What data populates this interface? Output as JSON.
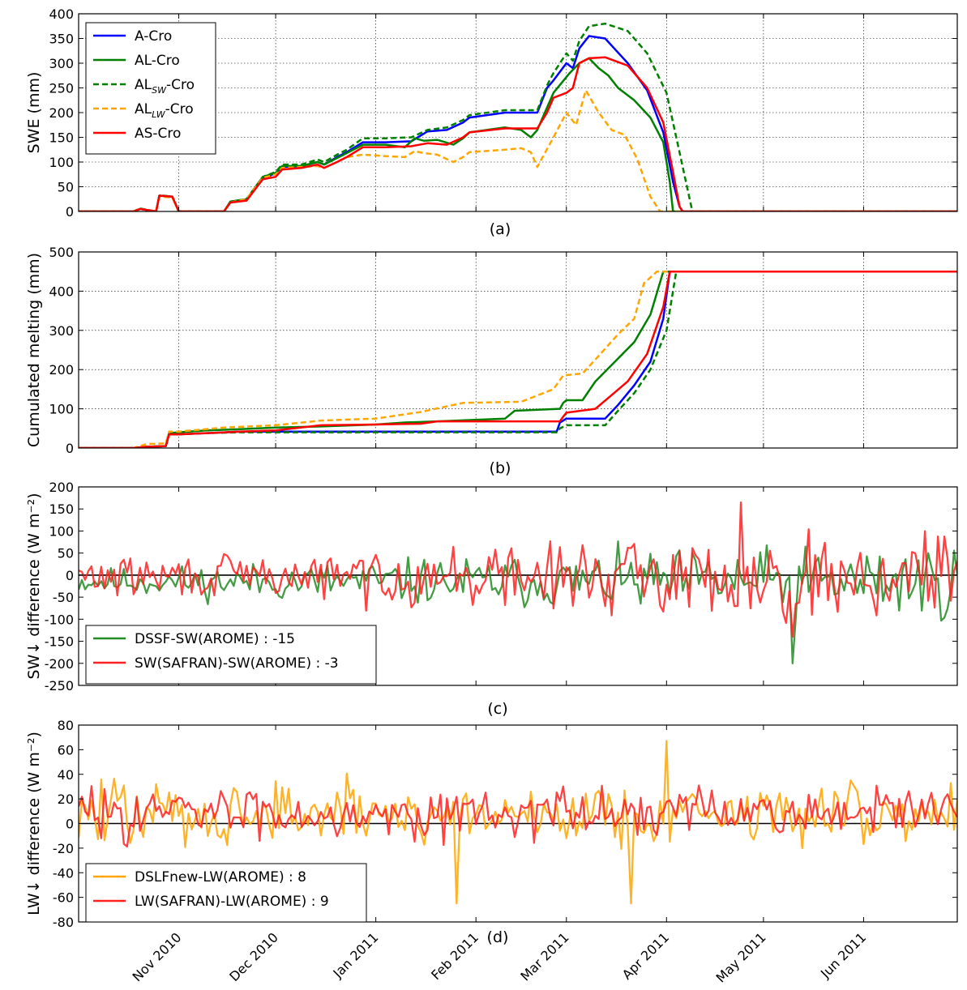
{
  "x_axis": {
    "type": "date",
    "range": [
      "2010-10-01",
      "2011-06-30"
    ],
    "tick_labels": [
      "Nov 2010",
      "Dec 2010",
      "Jan 2011",
      "Feb 2011",
      "Mar 2011",
      "Apr 2011",
      "May 2011",
      "Jun 2011"
    ],
    "tick_dates": [
      "2010-11-01",
      "2010-12-01",
      "2011-01-01",
      "2011-02-01",
      "2011-03-01",
      "2011-04-01",
      "2011-05-01",
      "2011-06-01"
    ]
  },
  "chart_data": [
    {
      "panel_label": "(a)",
      "type": "line",
      "ylabel": "SWE (mm)",
      "ylim": [
        0,
        400
      ],
      "yticks": [
        0,
        50,
        100,
        150,
        200,
        250,
        300,
        350,
        400
      ],
      "grid": true,
      "legend_position": "top-left",
      "series": [
        {
          "name": "A-Cro",
          "sub": "",
          "suffix": "",
          "color": "#0000ff",
          "dash": "solid",
          "x": [
            "2010-10-01",
            "2010-10-18",
            "2010-10-20",
            "2010-10-25",
            "2010-10-26",
            "2010-10-30",
            "2010-11-01",
            "2010-11-02",
            "2010-11-05",
            "2010-11-15",
            "2010-11-17",
            "2010-11-22",
            "2010-11-27",
            "2010-12-01",
            "2010-12-03",
            "2010-12-09",
            "2010-12-14",
            "2010-12-16",
            "2010-12-20",
            "2010-12-23",
            "2010-12-28",
            "2011-01-04",
            "2011-01-12",
            "2011-01-17",
            "2011-01-23",
            "2011-01-28",
            "2011-01-30",
            "2011-02-10",
            "2011-02-20",
            "2011-02-23",
            "2011-02-25",
            "2011-03-01",
            "2011-03-03",
            "2011-03-05",
            "2011-03-08",
            "2011-03-13",
            "2011-03-20",
            "2011-03-26",
            "2011-03-31",
            "2011-04-03",
            "2011-04-05",
            "2011-04-06",
            "2011-06-30"
          ],
          "y": [
            0,
            0,
            5,
            0,
            32,
            30,
            0,
            0,
            0,
            0,
            20,
            25,
            65,
            78,
            90,
            92,
            100,
            95,
            110,
            120,
            140,
            140,
            142,
            162,
            165,
            180,
            190,
            200,
            200,
            250,
            265,
            300,
            290,
            330,
            355,
            350,
            300,
            245,
            160,
            60,
            10,
            0,
            0
          ]
        },
        {
          "name": "AL-Cro",
          "sub": "",
          "suffix": "",
          "color": "#008000",
          "dash": "solid",
          "x": [
            "2010-10-01",
            "2010-10-18",
            "2010-10-20",
            "2010-10-25",
            "2010-10-26",
            "2010-10-30",
            "2010-11-01",
            "2010-11-15",
            "2010-11-17",
            "2010-11-22",
            "2010-11-27",
            "2010-12-01",
            "2010-12-03",
            "2010-12-09",
            "2010-12-14",
            "2010-12-16",
            "2010-12-20",
            "2010-12-23",
            "2010-12-28",
            "2011-01-04",
            "2011-01-10",
            "2011-01-13",
            "2011-01-16",
            "2011-01-20",
            "2011-01-25",
            "2011-01-28",
            "2011-01-30",
            "2011-02-10",
            "2011-02-15",
            "2011-02-18",
            "2011-02-20",
            "2011-02-25",
            "2011-03-02",
            "2011-03-05",
            "2011-03-08",
            "2011-03-11",
            "2011-03-14",
            "2011-03-17",
            "2011-03-22",
            "2011-03-27",
            "2011-03-31",
            "2011-04-02",
            "2011-04-03",
            "2011-06-30"
          ],
          "y": [
            0,
            0,
            5,
            0,
            32,
            30,
            0,
            0,
            20,
            25,
            70,
            78,
            92,
            92,
            100,
            95,
            108,
            118,
            135,
            135,
            130,
            148,
            143,
            145,
            135,
            148,
            160,
            170,
            165,
            150,
            165,
            240,
            280,
            300,
            310,
            290,
            275,
            250,
            225,
            190,
            140,
            60,
            0,
            0
          ]
        },
        {
          "name": "AL",
          "sub": "SW",
          "suffix": "-Cro",
          "color": "#008000",
          "dash": "dashed",
          "x": [
            "2010-10-01",
            "2010-10-18",
            "2010-10-20",
            "2010-10-25",
            "2010-10-26",
            "2010-10-30",
            "2010-11-01",
            "2010-11-15",
            "2010-11-17",
            "2010-11-22",
            "2010-11-27",
            "2010-12-01",
            "2010-12-03",
            "2010-12-09",
            "2010-12-14",
            "2010-12-16",
            "2010-12-20",
            "2010-12-23",
            "2010-12-28",
            "2011-01-04",
            "2011-01-12",
            "2011-01-17",
            "2011-01-23",
            "2011-01-28",
            "2011-01-30",
            "2011-02-10",
            "2011-02-20",
            "2011-02-23",
            "2011-02-25",
            "2011-03-01",
            "2011-03-03",
            "2011-03-05",
            "2011-03-08",
            "2011-03-13",
            "2011-03-20",
            "2011-03-26",
            "2011-04-01",
            "2011-04-05",
            "2011-04-08",
            "2011-04-09",
            "2011-06-30"
          ],
          "y": [
            0,
            0,
            6,
            0,
            33,
            30,
            0,
            0,
            20,
            25,
            70,
            80,
            95,
            95,
            105,
            100,
            115,
            125,
            148,
            148,
            150,
            165,
            170,
            185,
            195,
            205,
            205,
            255,
            280,
            320,
            305,
            345,
            375,
            380,
            365,
            320,
            240,
            120,
            30,
            0,
            0
          ]
        },
        {
          "name": "AL",
          "sub": "LW",
          "suffix": "-Cro",
          "color": "#ffa500",
          "dash": "dashed",
          "x": [
            "2010-10-01",
            "2010-10-18",
            "2010-10-20",
            "2010-10-25",
            "2010-10-26",
            "2010-10-30",
            "2010-11-01",
            "2010-11-15",
            "2010-11-17",
            "2010-11-22",
            "2010-11-27",
            "2010-12-01",
            "2010-12-03",
            "2010-12-09",
            "2010-12-14",
            "2010-12-16",
            "2010-12-20",
            "2010-12-23",
            "2010-12-28",
            "2011-01-04",
            "2011-01-10",
            "2011-01-13",
            "2011-01-16",
            "2011-01-20",
            "2011-01-25",
            "2011-01-28",
            "2011-01-30",
            "2011-02-10",
            "2011-02-15",
            "2011-02-18",
            "2011-02-20",
            "2011-02-25",
            "2011-03-01",
            "2011-03-04",
            "2011-03-07",
            "2011-03-11",
            "2011-03-15",
            "2011-03-19",
            "2011-03-23",
            "2011-03-27",
            "2011-03-30",
            "2011-06-30"
          ],
          "y": [
            0,
            0,
            5,
            0,
            30,
            28,
            0,
            0,
            18,
            25,
            68,
            75,
            88,
            90,
            92,
            88,
            100,
            110,
            115,
            112,
            110,
            122,
            118,
            115,
            100,
            110,
            120,
            125,
            128,
            120,
            90,
            150,
            200,
            175,
            245,
            200,
            165,
            155,
            105,
            30,
            0,
            0
          ]
        },
        {
          "name": "AS-Cro",
          "sub": "",
          "suffix": "",
          "color": "#ff0000",
          "dash": "solid",
          "x": [
            "2010-10-01",
            "2010-10-18",
            "2010-10-20",
            "2010-10-25",
            "2010-10-26",
            "2010-10-30",
            "2010-11-01",
            "2010-11-15",
            "2010-11-17",
            "2010-11-22",
            "2010-11-27",
            "2010-12-01",
            "2010-12-03",
            "2010-12-09",
            "2010-12-14",
            "2010-12-16",
            "2010-12-20",
            "2010-12-23",
            "2010-12-28",
            "2011-01-04",
            "2011-01-12",
            "2011-01-17",
            "2011-01-23",
            "2011-01-28",
            "2011-01-30",
            "2011-02-10",
            "2011-02-20",
            "2011-02-23",
            "2011-02-25",
            "2011-03-01",
            "2011-03-03",
            "2011-03-05",
            "2011-03-08",
            "2011-03-13",
            "2011-03-20",
            "2011-03-26",
            "2011-03-31",
            "2011-04-03",
            "2011-04-05",
            "2011-04-06",
            "2011-06-30"
          ],
          "y": [
            0,
            0,
            5,
            0,
            32,
            30,
            0,
            0,
            18,
            22,
            65,
            70,
            85,
            88,
            95,
            88,
            100,
            110,
            130,
            130,
            132,
            138,
            135,
            150,
            160,
            168,
            168,
            200,
            230,
            240,
            250,
            300,
            310,
            312,
            295,
            250,
            180,
            80,
            10,
            0,
            0
          ]
        }
      ]
    },
    {
      "panel_label": "(b)",
      "type": "line",
      "ylabel": "Cumulated melting (mm)",
      "ylim": [
        0,
        500
      ],
      "yticks": [
        0,
        100,
        200,
        300,
        400,
        500
      ],
      "grid": true,
      "series": [
        {
          "name": "A-Cro",
          "color": "#0000ff",
          "dash": "solid",
          "x": [
            "2010-10-01",
            "2010-10-18",
            "2010-10-22",
            "2010-10-28",
            "2010-10-29",
            "2010-11-01",
            "2010-11-10",
            "2010-11-20",
            "2010-12-01",
            "2011-01-01",
            "2011-02-01",
            "2011-02-26",
            "2011-02-27",
            "2011-03-01",
            "2011-03-13",
            "2011-03-17",
            "2011-03-22",
            "2011-03-27",
            "2011-03-31",
            "2011-04-02",
            "2011-06-30"
          ],
          "y": [
            0,
            0,
            3,
            5,
            35,
            35,
            38,
            42,
            42,
            42,
            42,
            42,
            65,
            75,
            75,
            110,
            160,
            220,
            330,
            450,
            450
          ]
        },
        {
          "name": "AL-Cro",
          "color": "#008000",
          "dash": "solid",
          "x": [
            "2010-10-01",
            "2010-10-18",
            "2010-10-22",
            "2010-10-28",
            "2010-10-29",
            "2010-11-01",
            "2010-11-10",
            "2010-11-20",
            "2010-12-01",
            "2010-12-15",
            "2011-01-01",
            "2011-01-10",
            "2011-01-20",
            "2011-02-10",
            "2011-02-13",
            "2011-02-27",
            "2011-02-28",
            "2011-03-01",
            "2011-03-06",
            "2011-03-10",
            "2011-03-16",
            "2011-03-22",
            "2011-03-27",
            "2011-03-31",
            "2011-06-30"
          ],
          "y": [
            0,
            0,
            3,
            5,
            38,
            40,
            45,
            48,
            52,
            55,
            60,
            65,
            68,
            75,
            95,
            100,
            115,
            122,
            122,
            170,
            220,
            270,
            340,
            450,
            450
          ]
        },
        {
          "name": "AL",
          "sub": "SW",
          "suffix": "-Cro",
          "color": "#008000",
          "dash": "dashed",
          "x": [
            "2010-10-01",
            "2010-10-18",
            "2010-10-22",
            "2010-10-28",
            "2010-10-29",
            "2010-11-01",
            "2010-11-10",
            "2010-11-20",
            "2010-12-01",
            "2011-01-01",
            "2011-02-01",
            "2011-02-26",
            "2011-02-27",
            "2011-03-01",
            "2011-03-13",
            "2011-03-17",
            "2011-03-22",
            "2011-03-27",
            "2011-04-01",
            "2011-04-04",
            "2011-06-30"
          ],
          "y": [
            0,
            0,
            3,
            5,
            35,
            35,
            38,
            40,
            40,
            40,
            40,
            40,
            50,
            58,
            58,
            95,
            140,
            200,
            300,
            450,
            450
          ]
        },
        {
          "name": "AL",
          "sub": "LW",
          "suffix": "-Cro",
          "color": "#ffa500",
          "dash": "dashed",
          "x": [
            "2010-10-01",
            "2010-10-18",
            "2010-10-22",
            "2010-10-28",
            "2010-10-29",
            "2010-11-01",
            "2010-11-15",
            "2010-12-01",
            "2010-12-15",
            "2011-01-01",
            "2011-01-15",
            "2011-01-28",
            "2011-02-15",
            "2011-02-25",
            "2011-02-28",
            "2011-03-06",
            "2011-03-11",
            "2011-03-17",
            "2011-03-22",
            "2011-03-25",
            "2011-03-29",
            "2011-06-30"
          ],
          "y": [
            0,
            0,
            10,
            12,
            42,
            42,
            52,
            58,
            70,
            75,
            92,
            115,
            118,
            150,
            185,
            190,
            235,
            290,
            330,
            420,
            450,
            450
          ]
        },
        {
          "name": "AS-Cro",
          "color": "#ff0000",
          "dash": "solid",
          "x": [
            "2010-10-01",
            "2010-10-18",
            "2010-10-22",
            "2010-10-28",
            "2010-10-29",
            "2010-11-01",
            "2010-11-10",
            "2010-11-20",
            "2010-12-01",
            "2010-12-15",
            "2011-01-01",
            "2011-01-15",
            "2011-01-20",
            "2011-02-10",
            "2011-02-27",
            "2011-02-28",
            "2011-03-01",
            "2011-03-10",
            "2011-03-15",
            "2011-03-20",
            "2011-03-26",
            "2011-03-31",
            "2011-04-02",
            "2011-06-30"
          ],
          "y": [
            0,
            0,
            3,
            5,
            35,
            35,
            38,
            42,
            45,
            58,
            60,
            62,
            68,
            68,
            68,
            80,
            90,
            100,
            135,
            170,
            240,
            360,
            450,
            450
          ]
        }
      ]
    },
    {
      "panel_label": "(c)",
      "type": "line",
      "ylabel": "SW↓ difference (W m⁻²)",
      "ylim": [
        -250,
        200
      ],
      "yticks": [
        -250,
        -200,
        -150,
        -100,
        -50,
        0,
        50,
        100,
        150,
        200
      ],
      "grid": false,
      "zero_line": true,
      "legend_position": "bottom-left",
      "series": [
        {
          "name": "DSSF-SW(AROME) : -15",
          "color": "#228b22",
          "dash": "solid",
          "mean": -15,
          "amp_start": 25,
          "amp_end": 75,
          "seed": 11
        },
        {
          "name": "SW(SAFRAN)-SW(AROME) : -3",
          "color": "#ff2020",
          "dash": "solid",
          "mean": -3,
          "amp_start": 35,
          "amp_end": 85,
          "seed": 29
        }
      ],
      "extremes": [
        [
          "2011-04-24",
          165,
          1
        ],
        [
          "2011-05-10",
          -200,
          0
        ],
        [
          "2011-05-10",
          -140,
          1
        ]
      ]
    },
    {
      "panel_label": "(d)",
      "type": "line",
      "ylabel": "LW↓ difference (W m⁻²)",
      "ylim": [
        -80,
        80
      ],
      "yticks": [
        -80,
        -60,
        -40,
        -20,
        0,
        20,
        40,
        60,
        80
      ],
      "grid": false,
      "zero_line": true,
      "legend_position": "bottom-left",
      "series": [
        {
          "name": "DSLFnew-LW(AROME) : 8",
          "color": "#ffa500",
          "dash": "solid",
          "mean": 8,
          "amp_start": 24,
          "amp_end": 20,
          "seed": 47
        },
        {
          "name": "LW(SAFRAN)-LW(AROME) : 9",
          "color": "#ff2020",
          "dash": "solid",
          "mean": 9,
          "amp_start": 18,
          "amp_end": 16,
          "seed": 83
        }
      ],
      "extremes": [
        [
          "2011-04-01",
          67,
          0
        ],
        [
          "2011-01-26",
          -65,
          0
        ],
        [
          "2011-03-21",
          -65,
          0
        ]
      ]
    }
  ]
}
